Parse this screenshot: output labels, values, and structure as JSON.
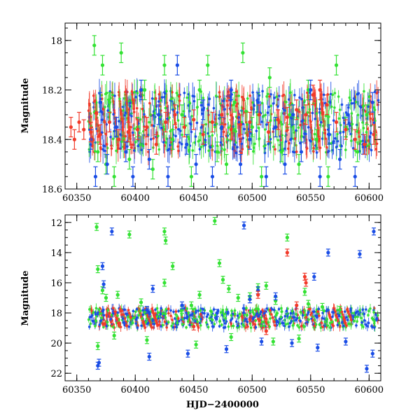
{
  "chart_data": [
    {
      "type": "scatter",
      "panel": "top",
      "title": "",
      "xlabel": "",
      "ylabel": "Magnitude",
      "xlim": [
        60340,
        60610
      ],
      "ylim": [
        18.6,
        17.93
      ],
      "y_inverted": true,
      "xticks": [
        60350,
        60400,
        60450,
        60500,
        60550,
        60600
      ],
      "xtick_labels": [
        "60350",
        "60400",
        "60450",
        "60500",
        "60550",
        "60600"
      ],
      "yticks": [
        18,
        18.2,
        18.4,
        18.6
      ],
      "ytick_labels": [
        "18",
        "18.2",
        "18.4",
        "18.6"
      ],
      "grid": false,
      "series": [
        {
          "color": "#33e233",
          "x": [
            60365,
            60368,
            60372,
            60375,
            60378,
            60382,
            60388,
            60395,
            60402,
            60408,
            60415,
            60425,
            60432,
            60440,
            60448,
            60455,
            60462,
            60470,
            60478,
            60485,
            60492,
            60500,
            60508,
            60515,
            60525,
            60532,
            60540,
            60548,
            60555,
            60565,
            60572,
            60580,
            60590,
            60598
          ],
          "y": [
            18.02,
            18.45,
            18.1,
            18.5,
            18.25,
            18.55,
            18.05,
            18.48,
            18.35,
            18.2,
            18.52,
            18.1,
            18.4,
            18.3,
            18.55,
            18.2,
            18.1,
            18.45,
            18.5,
            18.25,
            18.05,
            18.35,
            18.55,
            18.15,
            18.45,
            18.3,
            18.5,
            18.2,
            18.4,
            18.55,
            18.1,
            18.35,
            18.45,
            18.3
          ]
        },
        {
          "color": "#1a4de6",
          "x": [
            60362,
            60366,
            60370,
            60376,
            60384,
            60392,
            60398,
            60405,
            60412,
            60420,
            60428,
            60436,
            60444,
            60452,
            60458,
            60466,
            60474,
            60482,
            60490,
            60498,
            60505,
            60512,
            60520,
            60528,
            60535,
            60542,
            60550,
            60558,
            60566,
            60575,
            60582,
            60588,
            60595,
            60603
          ],
          "y": [
            18.4,
            18.55,
            18.25,
            18.5,
            18.35,
            18.45,
            18.55,
            18.2,
            18.48,
            18.3,
            18.55,
            18.1,
            18.42,
            18.5,
            18.28,
            18.55,
            18.35,
            18.2,
            18.5,
            18.4,
            18.25,
            18.55,
            18.35,
            18.5,
            18.3,
            18.45,
            18.2,
            18.55,
            18.38,
            18.48,
            18.3,
            18.55,
            18.42,
            18.25
          ]
        },
        {
          "color": "#f23a2a",
          "x": [
            60345,
            60348,
            60352,
            60356,
            60362,
            60370,
            60378,
            60386,
            60394,
            60402,
            60410,
            60418,
            60426,
            60434,
            60442,
            60450,
            60458,
            60466,
            60474,
            60482,
            60490,
            60498,
            60506,
            60514,
            60522,
            60530,
            60538,
            60546,
            60552,
            60558,
            60564,
            60572,
            60580,
            60588,
            60596,
            60604
          ],
          "y": [
            18.35,
            18.4,
            18.33,
            18.36,
            18.37,
            18.38,
            18.33,
            18.4,
            18.37,
            18.36,
            18.35,
            18.42,
            18.33,
            18.3,
            18.35,
            18.32,
            18.38,
            18.33,
            18.3,
            18.36,
            18.34,
            18.33,
            18.3,
            18.37,
            18.32,
            18.31,
            18.28,
            18.3,
            18.22,
            18.2,
            18.26,
            18.33,
            18.36,
            18.4,
            18.42,
            18.38
          ]
        }
      ]
    },
    {
      "type": "scatter",
      "panel": "bottom",
      "title": "",
      "xlabel": "HJD−2400000",
      "ylabel": "Magnitude",
      "xlim": [
        60340,
        60610
      ],
      "ylim": [
        22.5,
        11.5
      ],
      "y_inverted": true,
      "xticks": [
        60350,
        60400,
        60450,
        60500,
        60550,
        60600
      ],
      "xtick_labels": [
        "60350",
        "60400",
        "60450",
        "60500",
        "60550",
        "60600"
      ],
      "yticks": [
        12,
        14,
        16,
        18,
        20,
        22
      ],
      "ytick_labels": [
        "12",
        "14",
        "16",
        "18",
        "20",
        "22"
      ],
      "grid": false,
      "series": [
        {
          "color": "#33e233",
          "x": [
            60367,
            60368,
            60372,
            60375,
            60385,
            60395,
            60405,
            60425,
            60426,
            60432,
            60448,
            60468,
            60472,
            60480,
            60498,
            60512,
            60530,
            60545,
            60425,
            60440,
            60455,
            60475,
            60488,
            60505,
            60520,
            60548,
            60560,
            60575,
            60368,
            60382,
            60410,
            60452,
            60482,
            60518,
            60540
          ],
          "y": [
            12.3,
            15.1,
            16.5,
            17.0,
            16.8,
            12.8,
            17.3,
            12.6,
            13.2,
            14.9,
            17.5,
            11.9,
            14.7,
            16.4,
            16.9,
            16.2,
            13.0,
            16.6,
            16.0,
            17.8,
            16.8,
            15.8,
            17.0,
            16.3,
            17.2,
            17.4,
            17.6,
            17.8,
            20.2,
            19.5,
            19.8,
            20.1,
            19.6,
            19.9,
            19.7
          ]
        },
        {
          "color": "#1a4de6",
          "x": [
            60372,
            60380,
            60373,
            60410,
            60415,
            60440,
            60470,
            60493,
            60498,
            60505,
            60520,
            60553,
            60565,
            60592,
            60604,
            60368,
            60369,
            60412,
            60445,
            60478,
            60508,
            60534,
            60556,
            60580,
            60598,
            60603
          ],
          "y": [
            14.9,
            12.6,
            16.1,
            17.8,
            16.4,
            17.5,
            18.0,
            12.2,
            17.1,
            16.5,
            16.9,
            15.6,
            14.0,
            14.1,
            12.6,
            21.5,
            21.3,
            20.9,
            20.7,
            20.4,
            19.9,
            20.0,
            20.3,
            19.9,
            21.7,
            20.7
          ]
        },
        {
          "color": "#f23a2a",
          "x": [
            60530,
            60505,
            60545,
            60546,
            60538,
            60450,
            60512
          ],
          "y": [
            14.0,
            16.8,
            15.6,
            16.0,
            17.5,
            18.9,
            19.2
          ]
        }
      ]
    }
  ]
}
